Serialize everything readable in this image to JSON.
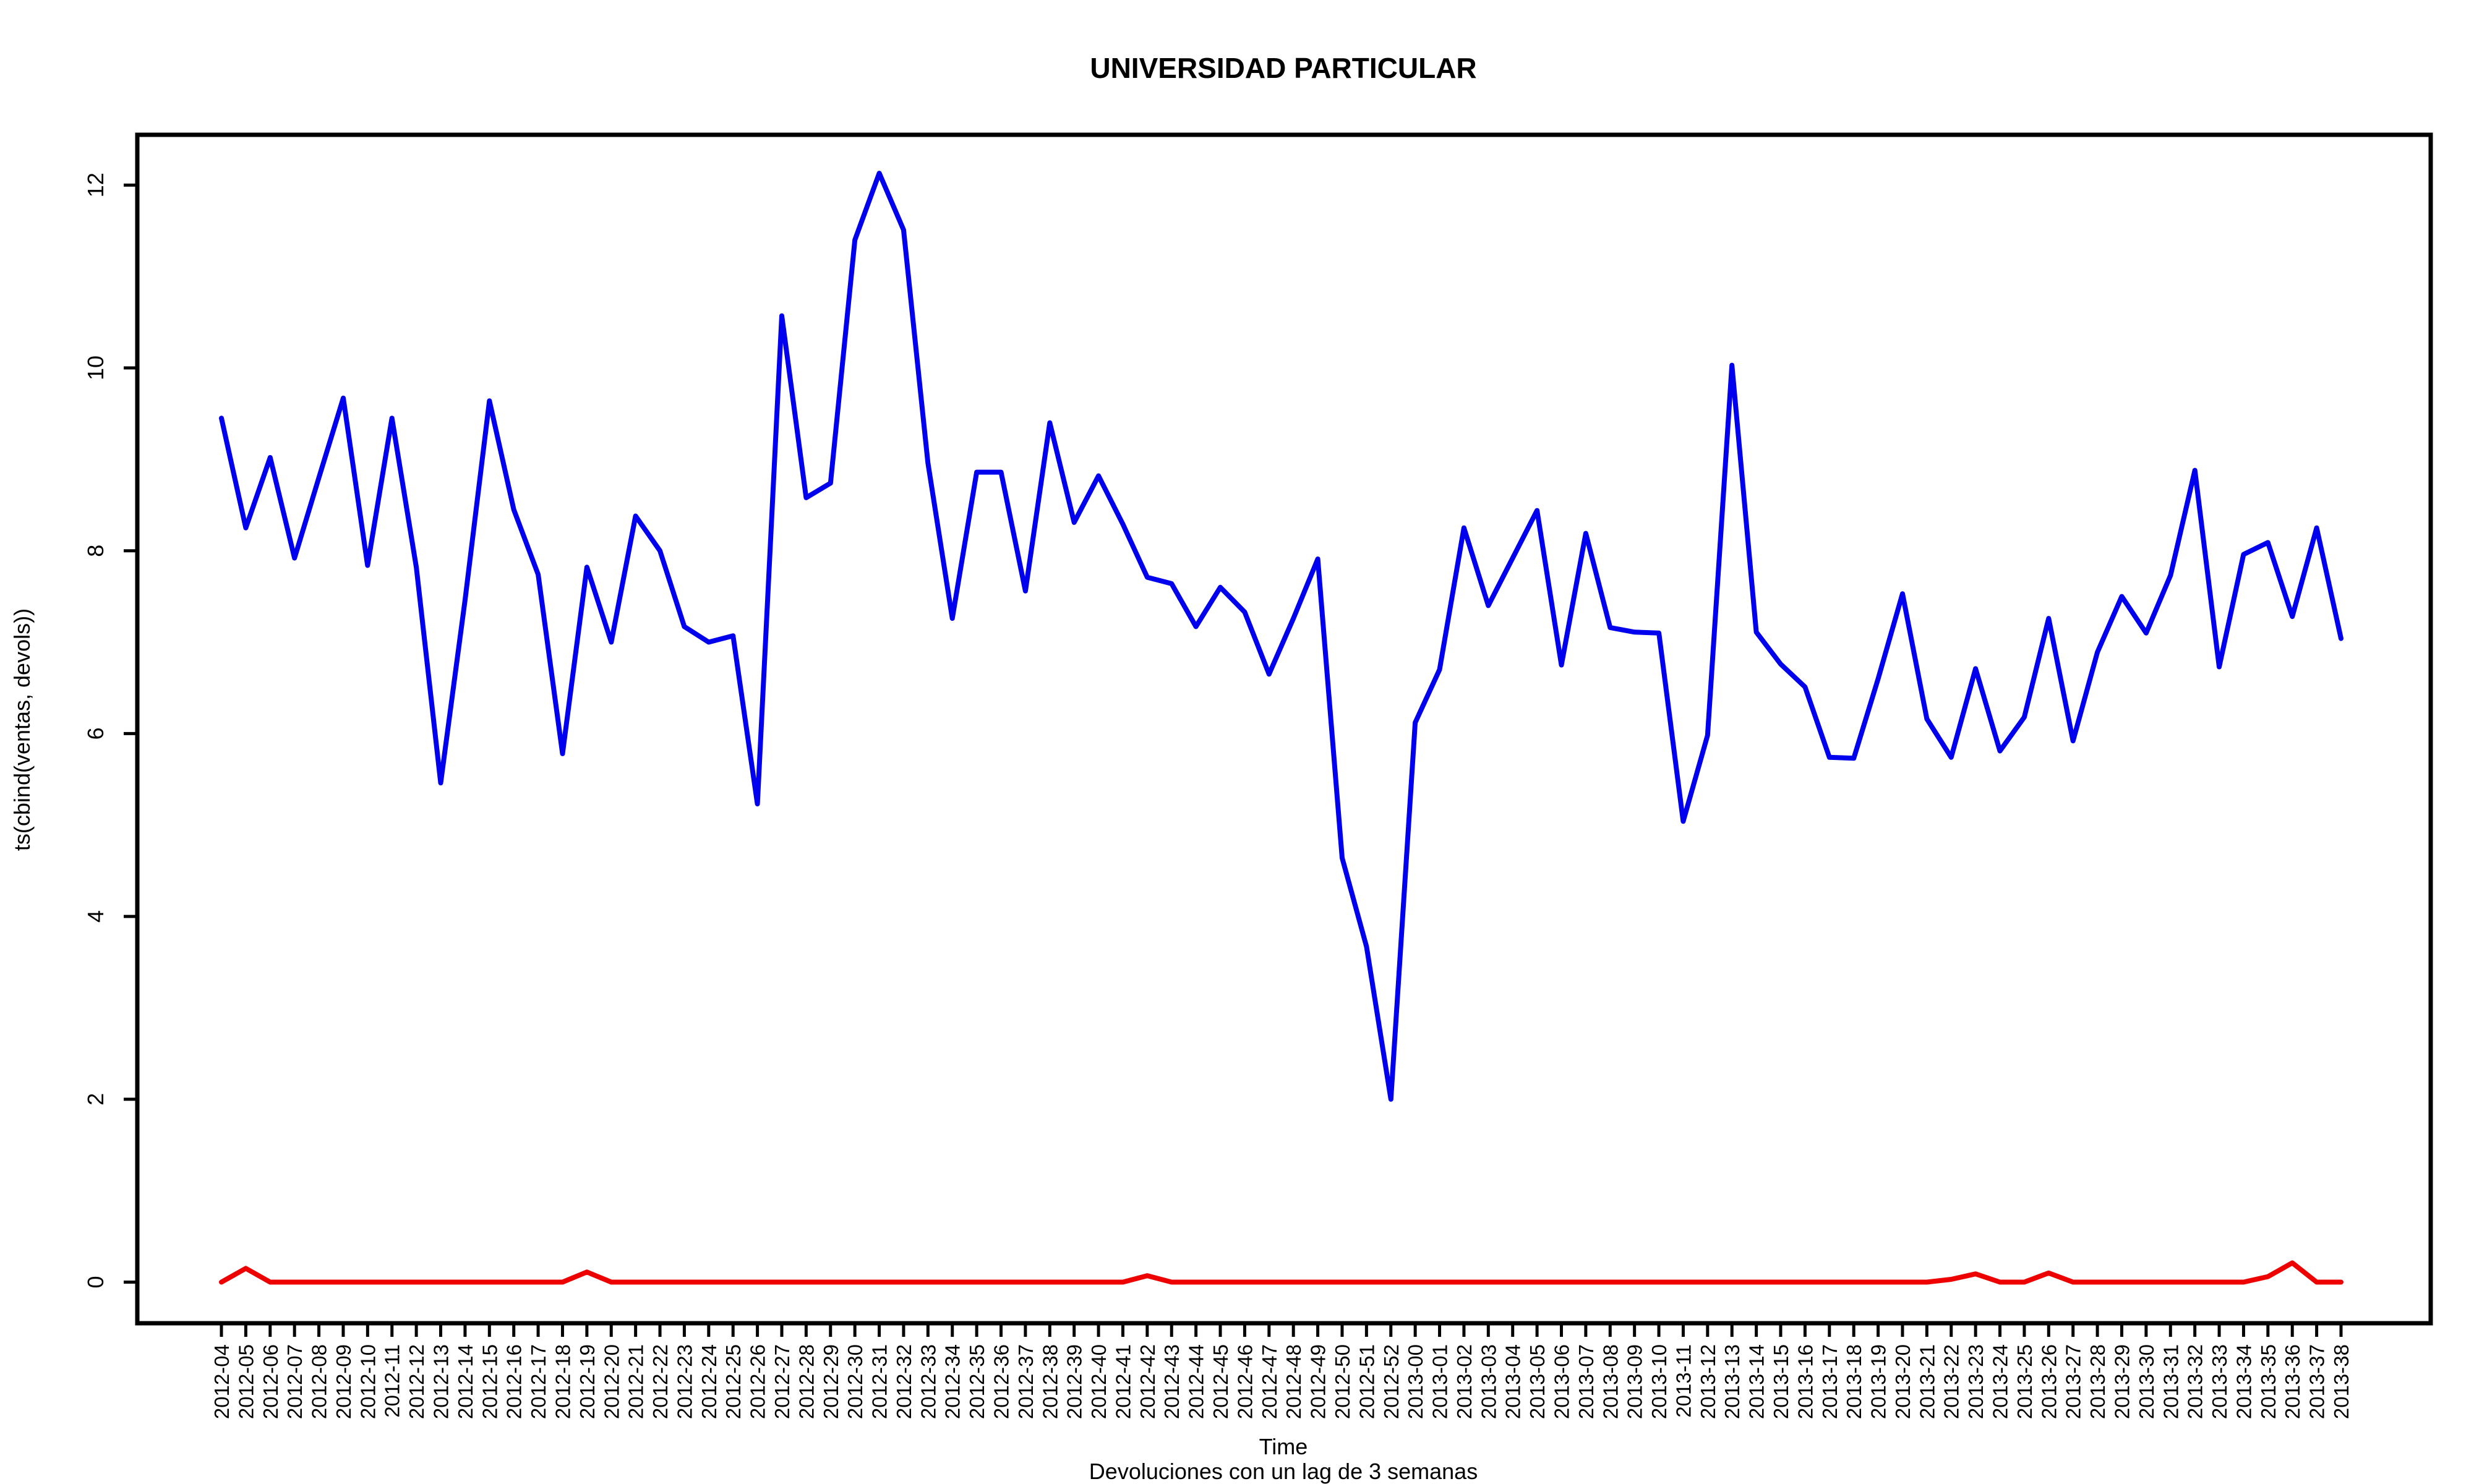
{
  "chart_data": {
    "type": "line",
    "title": "UNIVERSIDAD PARTICULAR",
    "xlabel": "Time",
    "ylabel": "ts(cbind(ventas, devols))",
    "subtitle": "Devoluciones con un lag de 3 semanas",
    "ylim": [
      -0.45,
      12.55
    ],
    "yticks": [
      0,
      2,
      4,
      6,
      8,
      10,
      12
    ],
    "grid": false,
    "categories": [
      "2012-04",
      "2012-05",
      "2012-06",
      "2012-07",
      "2012-08",
      "2012-09",
      "2012-10",
      "2012-11",
      "2012-12",
      "2012-13",
      "2012-14",
      "2012-15",
      "2012-16",
      "2012-17",
      "2012-18",
      "2012-19",
      "2012-20",
      "2012-21",
      "2012-22",
      "2012-23",
      "2012-24",
      "2012-25",
      "2012-26",
      "2012-27",
      "2012-28",
      "2012-29",
      "2012-30",
      "2012-31",
      "2012-32",
      "2012-33",
      "2012-34",
      "2012-35",
      "2012-36",
      "2012-37",
      "2012-38",
      "2012-39",
      "2012-40",
      "2012-41",
      "2012-42",
      "2012-43",
      "2012-44",
      "2012-45",
      "2012-46",
      "2012-47",
      "2012-48",
      "2012-49",
      "2012-50",
      "2012-51",
      "2012-52",
      "2013-00",
      "2013-01",
      "2013-02",
      "2013-03",
      "2013-04",
      "2013-05",
      "2013-06",
      "2013-07",
      "2013-08",
      "2013-09",
      "2013-10",
      "2013-11",
      "2013-12",
      "2013-13",
      "2013-14",
      "2013-15",
      "2013-16",
      "2013-17",
      "2013-18",
      "2013-19",
      "2013-20",
      "2013-21",
      "2013-22",
      "2013-23",
      "2013-24",
      "2013-25",
      "2013-26",
      "2013-27",
      "2013-28",
      "2013-29",
      "2013-30",
      "2013-31",
      "2013-32",
      "2013-33",
      "2013-34",
      "2013-35",
      "2013-36",
      "2013-37",
      "2013-38"
    ],
    "series": [
      {
        "name": "ventas",
        "color": "#0000ee",
        "values": [
          9.45,
          8.25,
          9.02,
          7.92,
          8.8,
          9.67,
          7.84,
          9.45,
          7.82,
          5.46,
          7.46,
          9.64,
          8.45,
          7.74,
          5.78,
          7.82,
          7.0,
          8.38,
          8.0,
          7.17,
          7.0,
          7.07,
          5.23,
          10.57,
          8.58,
          8.74,
          11.4,
          12.13,
          11.51,
          8.96,
          7.26,
          8.86,
          8.86,
          7.56,
          9.4,
          8.31,
          8.82,
          8.29,
          7.71,
          7.64,
          7.17,
          7.6,
          7.33,
          6.65,
          7.26,
          7.91,
          4.64,
          3.67,
          2.0,
          6.12,
          6.7,
          8.25,
          7.4,
          7.92,
          8.44,
          6.75,
          8.19,
          7.16,
          7.11,
          7.1,
          5.04,
          5.98,
          10.03,
          7.11,
          6.76,
          6.51,
          5.74,
          5.73,
          6.6,
          7.53,
          6.16,
          5.74,
          6.71,
          5.81,
          6.18,
          7.26,
          5.92,
          6.89,
          7.5,
          7.1,
          7.73,
          8.88,
          6.73,
          7.96,
          8.09,
          7.28,
          8.25,
          7.04
        ]
      },
      {
        "name": "devols",
        "color": "#ee0000",
        "values": [
          0,
          0.15,
          0,
          0,
          0,
          0,
          0,
          0,
          0,
          0,
          0,
          0,
          0,
          0,
          0,
          0.11,
          0,
          0,
          0,
          0,
          0,
          0,
          0,
          0,
          0,
          0,
          0,
          0,
          0,
          0,
          0,
          0,
          0,
          0,
          0,
          0,
          0,
          0,
          0.07,
          0,
          0,
          0,
          0,
          0,
          0,
          0,
          0,
          0,
          0,
          0,
          0,
          0,
          0,
          0,
          0,
          0,
          0,
          0,
          0,
          0,
          0,
          0,
          0,
          0,
          0,
          0,
          0,
          0,
          0,
          0,
          0,
          0.03,
          0.09,
          0,
          0,
          0.1,
          0,
          0,
          0,
          0,
          0,
          0,
          0,
          0,
          0.06,
          0.21,
          0,
          0
        ]
      }
    ]
  }
}
